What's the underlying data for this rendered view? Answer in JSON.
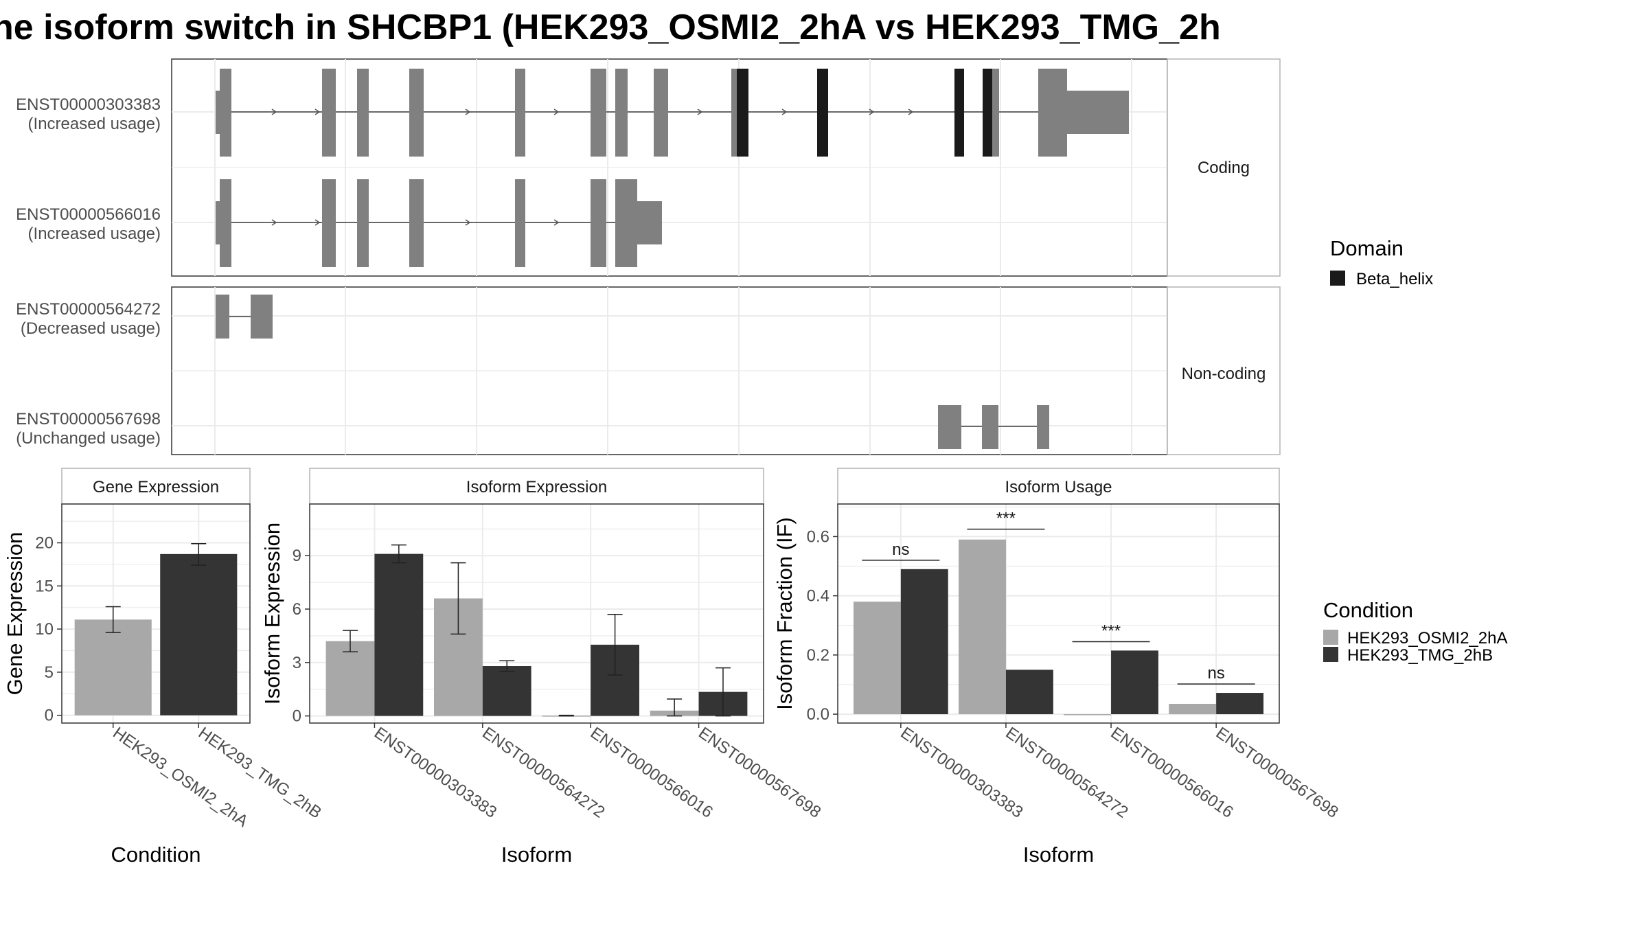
{
  "title": "he isoform switch in SHCBP1 (HEK293_OSMI2_2hA vs HEK293_TMG_2h",
  "colors": {
    "cond_a": "#a8a8a8",
    "cond_b": "#343434",
    "exon": "#808080",
    "domain": "#1a1a1a",
    "grid": "#ebebeb",
    "panel_border": "#333333",
    "strip_border": "#b3b3b3"
  },
  "structure_plot": {
    "coding_label": "Coding",
    "noncoding_label": "Non-coding",
    "coding_isoforms": [
      {
        "id": "ENST00000303383",
        "usage": "(Increased usage)"
      },
      {
        "id": "ENST00000566016",
        "usage": "(Increased usage)"
      }
    ],
    "noncoding_isoforms": [
      {
        "id": "ENST00000564272",
        "usage": "(Decreased usage)"
      },
      {
        "id": "ENST00000567698",
        "usage": "(Unchanged usage)"
      }
    ]
  },
  "domain_legend": {
    "title": "Domain",
    "items": [
      {
        "label": "Beta_helix"
      }
    ]
  },
  "condition_legend": {
    "title": "Condition",
    "items": [
      {
        "label": "HEK293_OSMI2_2hA",
        "color": "#a8a8a8"
      },
      {
        "label": "HEK293_TMG_2hB",
        "color": "#343434"
      }
    ]
  },
  "chart_data": [
    {
      "type": "bar",
      "strip": "Gene Expression",
      "xlabel": "Condition",
      "ylabel": "Gene Expression",
      "categories": [
        "HEK293_OSMI2_2hA",
        "HEK293_TMG_2hB"
      ],
      "values": [
        11.1,
        18.7
      ],
      "errors": [
        [
          9.6,
          12.6
        ],
        [
          17.4,
          19.9
        ]
      ],
      "colors": [
        "#a8a8a8",
        "#343434"
      ],
      "yticks": [
        0,
        5,
        10,
        15,
        20
      ],
      "ylim": [
        -0.9,
        24.5
      ]
    },
    {
      "type": "bar",
      "strip": "Isoform Expression",
      "xlabel": "Isoform",
      "ylabel": "Isoform Expression",
      "categories": [
        "ENST00000303383",
        "ENST00000564272",
        "ENST00000566016",
        "ENST00000567698"
      ],
      "series": [
        {
          "name": "HEK293_OSMI2_2hA",
          "values": [
            4.2,
            6.6,
            0.02,
            0.3
          ],
          "errors": [
            [
              3.6,
              4.8
            ],
            [
              4.6,
              8.6
            ],
            [
              0.0,
              0.04
            ],
            [
              0.0,
              0.95
            ]
          ]
        },
        {
          "name": "HEK293_TMG_2hB",
          "values": [
            9.1,
            2.8,
            4.0,
            1.35
          ],
          "errors": [
            [
              8.6,
              9.6
            ],
            [
              2.5,
              3.1
            ],
            [
              2.3,
              5.7
            ],
            [
              0.0,
              2.7
            ]
          ]
        }
      ],
      "yticks": [
        0,
        3,
        6,
        9
      ],
      "ylim": [
        -0.4,
        11.9
      ]
    },
    {
      "type": "bar",
      "strip": "Isoform Usage",
      "xlabel": "Isoform",
      "ylabel": "Isoform Fraction (IF)",
      "categories": [
        "ENST00000303383",
        "ENST00000564272",
        "ENST00000566016",
        "ENST00000567698"
      ],
      "series": [
        {
          "name": "HEK293_OSMI2_2hA",
          "values": [
            0.38,
            0.59,
            0.0,
            0.035
          ]
        },
        {
          "name": "HEK293_TMG_2hB",
          "values": [
            0.49,
            0.15,
            0.215,
            0.072
          ]
        }
      ],
      "significance": [
        "ns",
        "***",
        "***",
        "ns"
      ],
      "sig_line_y": [
        0.52,
        0.625,
        0.245,
        0.102
      ],
      "yticks": [
        0.0,
        0.2,
        0.4,
        0.6
      ],
      "ylim": [
        -0.03,
        0.71
      ]
    }
  ]
}
